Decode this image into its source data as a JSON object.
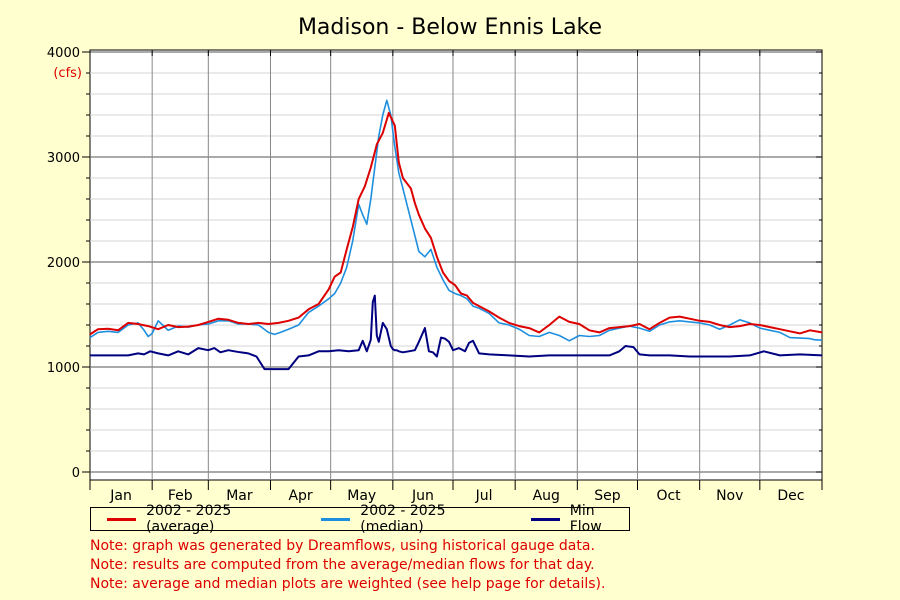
{
  "colors": {
    "average": "#dd0000",
    "median": "#1e8fdf",
    "min": "#000080",
    "note": "#dd0000",
    "unit": "#dd0000",
    "background": "#ffffd0",
    "plot_background": "#ffffff"
  },
  "chart_data": {
    "type": "line",
    "title": "Madison - Below Ennis Lake",
    "ylabel": "(cfs)",
    "xlabel": "",
    "ylim": [
      0,
      4000
    ],
    "xlim": [
      1,
      366
    ],
    "yticks": [
      0,
      1000,
      2000,
      3000,
      4000
    ],
    "ytick_labels": [
      "0",
      "1000",
      "2000",
      "3000",
      "4000"
    ],
    "grid": true,
    "month_starts": [
      1,
      32,
      60,
      91,
      121,
      152,
      182,
      213,
      244,
      274,
      305,
      335,
      366
    ],
    "months": [
      "Jan",
      "Feb",
      "Mar",
      "Apr",
      "May",
      "Jun",
      "Jul",
      "Aug",
      "Sep",
      "Oct",
      "Nov",
      "Dec"
    ],
    "legend_position": "bottom-left",
    "series": [
      {
        "key": "average",
        "name": "2002 - 2025 (average)",
        "x": [
          1,
          5,
          10,
          15,
          20,
          25,
          30,
          35,
          40,
          45,
          50,
          55,
          60,
          65,
          70,
          75,
          80,
          85,
          90,
          95,
          100,
          105,
          110,
          115,
          120,
          123,
          126,
          129,
          132,
          135,
          138,
          141,
          144,
          147,
          150,
          153,
          155,
          157,
          159,
          161,
          163,
          165,
          168,
          171,
          174,
          177,
          180,
          183,
          186,
          189,
          192,
          195,
          200,
          205,
          210,
          215,
          220,
          225,
          230,
          235,
          240,
          245,
          250,
          255,
          260,
          265,
          270,
          275,
          280,
          285,
          290,
          295,
          300,
          305,
          310,
          315,
          320,
          325,
          330,
          335,
          340,
          345,
          350,
          355,
          360,
          366
        ],
        "y": [
          1310,
          1360,
          1365,
          1350,
          1420,
          1410,
          1390,
          1360,
          1400,
          1380,
          1385,
          1400,
          1430,
          1460,
          1450,
          1420,
          1410,
          1420,
          1410,
          1420,
          1440,
          1470,
          1550,
          1600,
          1740,
          1860,
          1900,
          2120,
          2330,
          2600,
          2720,
          2900,
          3120,
          3230,
          3420,
          3300,
          2950,
          2800,
          2750,
          2700,
          2560,
          2450,
          2320,
          2230,
          2050,
          1900,
          1820,
          1780,
          1700,
          1680,
          1610,
          1580,
          1530,
          1470,
          1420,
          1390,
          1370,
          1330,
          1400,
          1480,
          1430,
          1410,
          1350,
          1330,
          1370,
          1380,
          1390,
          1410,
          1360,
          1420,
          1470,
          1480,
          1460,
          1440,
          1430,
          1400,
          1380,
          1390,
          1410,
          1400,
          1380,
          1360,
          1340,
          1320,
          1350,
          1330
        ]
      },
      {
        "key": "median",
        "name": "2002 - 2025 (median)",
        "x": [
          1,
          5,
          10,
          15,
          20,
          25,
          28,
          30,
          32,
          35,
          40,
          45,
          50,
          55,
          60,
          65,
          70,
          75,
          80,
          85,
          90,
          93,
          96,
          100,
          105,
          110,
          115,
          120,
          123,
          126,
          129,
          132,
          135,
          137,
          139,
          141,
          143,
          145,
          147,
          149,
          151,
          153,
          155,
          157,
          159,
          161,
          163,
          165,
          168,
          171,
          174,
          177,
          180,
          183,
          186,
          189,
          192,
          195,
          200,
          205,
          210,
          215,
          220,
          225,
          230,
          235,
          240,
          245,
          250,
          255,
          260,
          265,
          270,
          275,
          280,
          285,
          290,
          295,
          300,
          305,
          310,
          315,
          320,
          325,
          330,
          335,
          340,
          345,
          350,
          355,
          360,
          362,
          366
        ],
        "y": [
          1280,
          1330,
          1340,
          1330,
          1400,
          1420,
          1350,
          1290,
          1320,
          1440,
          1350,
          1390,
          1380,
          1400,
          1410,
          1440,
          1440,
          1410,
          1410,
          1400,
          1330,
          1310,
          1330,
          1360,
          1400,
          1520,
          1580,
          1650,
          1700,
          1800,
          1950,
          2200,
          2550,
          2450,
          2360,
          2600,
          2900,
          3200,
          3400,
          3540,
          3400,
          3100,
          2850,
          2700,
          2550,
          2400,
          2250,
          2100,
          2050,
          2120,
          1950,
          1830,
          1730,
          1700,
          1680,
          1650,
          1580,
          1560,
          1510,
          1420,
          1400,
          1360,
          1300,
          1290,
          1330,
          1300,
          1250,
          1300,
          1290,
          1300,
          1350,
          1370,
          1390,
          1370,
          1340,
          1400,
          1430,
          1440,
          1430,
          1420,
          1400,
          1360,
          1400,
          1450,
          1420,
          1370,
          1350,
          1330,
          1280,
          1275,
          1270,
          1260,
          1255
        ]
      },
      {
        "key": "min",
        "name": "Min Flow",
        "x": [
          1,
          10,
          20,
          25,
          28,
          31,
          35,
          40,
          45,
          50,
          55,
          60,
          63,
          66,
          70,
          73,
          76,
          80,
          84,
          88,
          92,
          95,
          100,
          105,
          110,
          115,
          120,
          125,
          130,
          135,
          137,
          139,
          141,
          142,
          143,
          144,
          145,
          147,
          149,
          151,
          152,
          153,
          154,
          155,
          157,
          160,
          163,
          165,
          168,
          170,
          172,
          174,
          176,
          178,
          180,
          182,
          185,
          188,
          190,
          192,
          195,
          200,
          210,
          220,
          230,
          240,
          250,
          260,
          265,
          268,
          272,
          275,
          280,
          290,
          300,
          310,
          320,
          330,
          337,
          345,
          355,
          366
        ],
        "y": [
          1110,
          1110,
          1110,
          1130,
          1120,
          1150,
          1130,
          1110,
          1150,
          1120,
          1180,
          1160,
          1180,
          1140,
          1160,
          1150,
          1140,
          1130,
          1100,
          980,
          980,
          980,
          980,
          1100,
          1110,
          1150,
          1150,
          1160,
          1150,
          1160,
          1250,
          1150,
          1260,
          1620,
          1680,
          1300,
          1240,
          1420,
          1360,
          1200,
          1170,
          1160,
          1160,
          1150,
          1140,
          1150,
          1160,
          1240,
          1370,
          1150,
          1140,
          1100,
          1280,
          1270,
          1240,
          1160,
          1180,
          1150,
          1230,
          1250,
          1130,
          1120,
          1110,
          1100,
          1110,
          1110,
          1110,
          1110,
          1150,
          1200,
          1190,
          1120,
          1110,
          1110,
          1100,
          1100,
          1100,
          1110,
          1150,
          1110,
          1120,
          1110
        ]
      }
    ]
  },
  "notes": [
    "Note: graph was generated by Dreamflows, using historical gauge data.",
    "Note: results are computed from the average/median flows for that day.",
    "Note: average and median plots are weighted (see help page for details)."
  ]
}
